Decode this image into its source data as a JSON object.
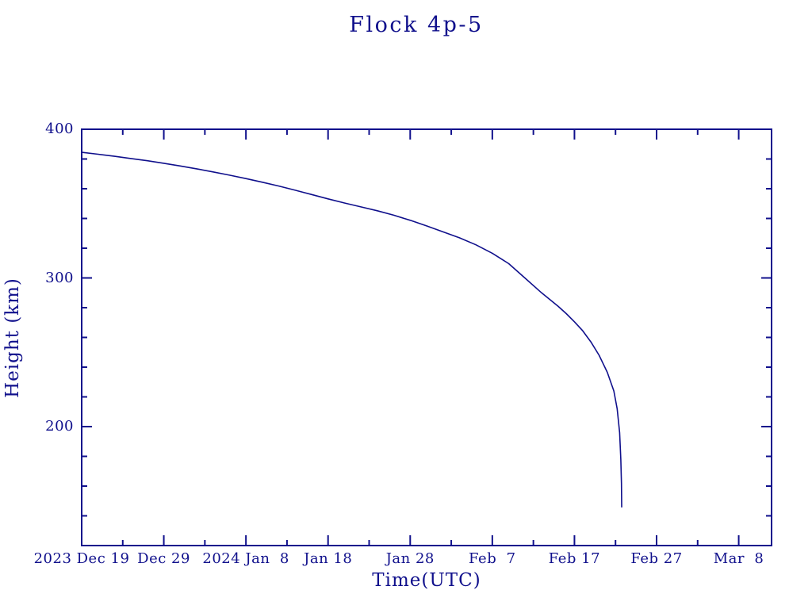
{
  "page": {
    "background_color": "#ffffff"
  },
  "chart_data": {
    "type": "line",
    "title": "Flock 4p-5",
    "xlabel": "Time(UTC)",
    "ylabel": "Height (km)",
    "color": "#10108c",
    "grid": false,
    "legend": "none",
    "x_unit": "days since 2023 Dec 19",
    "xlim_days": [
      0,
      84
    ],
    "ylim": [
      120,
      400
    ],
    "x_major_ticks": [
      {
        "day": 0,
        "label": "2023 Dec 19"
      },
      {
        "day": 10,
        "label": "Dec 29"
      },
      {
        "day": 20,
        "label": "2024 Jan  8"
      },
      {
        "day": 30,
        "label": "Jan 18"
      },
      {
        "day": 40,
        "label": "Jan 28"
      },
      {
        "day": 50,
        "label": "Feb  7"
      },
      {
        "day": 60,
        "label": "Feb 17"
      },
      {
        "day": 70,
        "label": "Feb 27"
      },
      {
        "day": 80,
        "label": "Mar  8"
      }
    ],
    "x_minor_tick_days": [
      5,
      15,
      25,
      35,
      45,
      55,
      65,
      75
    ],
    "y_major_ticks": [
      {
        "value": 200,
        "label": "200"
      },
      {
        "value": 300,
        "label": "300"
      },
      {
        "value": 400,
        "label": "400"
      }
    ],
    "y_minor_tick_values": [
      140,
      160,
      180,
      220,
      240,
      260,
      280,
      320,
      340,
      360,
      380
    ],
    "series": [
      {
        "name": "Flock 4p-5 orbital height",
        "points_day_km": [
          [
            0,
            384.5
          ],
          [
            2,
            383.2
          ],
          [
            4,
            381.8
          ],
          [
            6,
            380.3
          ],
          [
            8,
            378.8
          ],
          [
            10,
            377.1
          ],
          [
            12,
            375.3
          ],
          [
            14,
            373.4
          ],
          [
            16,
            371.3
          ],
          [
            18,
            369.1
          ],
          [
            20,
            366.8
          ],
          [
            22,
            364.4
          ],
          [
            24,
            361.8
          ],
          [
            26,
            359.0
          ],
          [
            28,
            356.1
          ],
          [
            30,
            353.2
          ],
          [
            32,
            350.4
          ],
          [
            34,
            347.8
          ],
          [
            36,
            345.2
          ],
          [
            38,
            342.2
          ],
          [
            40,
            338.8
          ],
          [
            42,
            335.0
          ],
          [
            44,
            331.0
          ],
          [
            46,
            327.0
          ],
          [
            48,
            322.3
          ],
          [
            50,
            316.6
          ],
          [
            52,
            309.6
          ],
          [
            54,
            299.8
          ],
          [
            56,
            290.0
          ],
          [
            58,
            281.0
          ],
          [
            59,
            276.0
          ],
          [
            60,
            270.5
          ],
          [
            61,
            264.5
          ],
          [
            62,
            257.0
          ],
          [
            63,
            248.0
          ],
          [
            64,
            236.5
          ],
          [
            64.8,
            224.0
          ],
          [
            65.2,
            212.0
          ],
          [
            65.5,
            196.0
          ],
          [
            65.65,
            178.0
          ],
          [
            65.72,
            162.0
          ],
          [
            65.75,
            146.0
          ]
        ]
      }
    ]
  }
}
